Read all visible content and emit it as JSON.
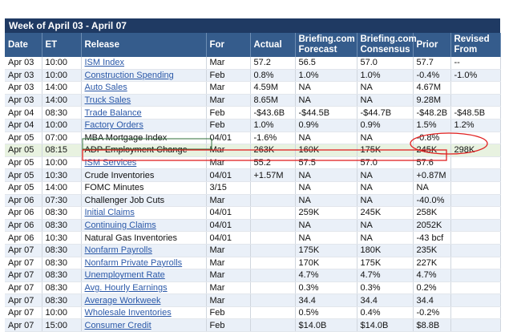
{
  "week_title": "Week of April 03 - April 07",
  "columns": [
    "Date",
    "ET",
    "Release",
    "For",
    "Actual",
    "Briefing.com Forecast",
    "Briefing.com Consensus",
    "Prior",
    "Revised From"
  ],
  "rows": [
    {
      "date": "Apr 03",
      "et": "10:00",
      "release": "ISM Index",
      "link": true,
      "for": "Mar",
      "actual": "57.2",
      "forecast": "56.5",
      "consensus": "57.0",
      "prior": "57.7",
      "revised": "--"
    },
    {
      "date": "Apr 03",
      "et": "10:00",
      "release": "Construction Spending",
      "link": true,
      "for": "Feb",
      "actual": "0.8%",
      "forecast": "1.0%",
      "consensus": "1.0%",
      "prior": "-0.4%",
      "revised": "-1.0%"
    },
    {
      "date": "Apr 03",
      "et": "14:00",
      "release": "Auto Sales",
      "link": true,
      "for": "Mar",
      "actual": "4.59M",
      "forecast": "NA",
      "consensus": "NA",
      "prior": "4.67M",
      "revised": ""
    },
    {
      "date": "Apr 03",
      "et": "14:00",
      "release": "Truck Sales",
      "link": true,
      "for": "Mar",
      "actual": "8.65M",
      "forecast": "NA",
      "consensus": "NA",
      "prior": "9.28M",
      "revised": ""
    },
    {
      "date": "Apr 04",
      "et": "08:30",
      "release": "Trade Balance",
      "link": true,
      "for": "Feb",
      "actual": "-$43.6B",
      "forecast": "-$44.5B",
      "consensus": "-$44.7B",
      "prior": "-$48.2B",
      "revised": "-$48.5B"
    },
    {
      "date": "Apr 04",
      "et": "10:00",
      "release": "Factory Orders",
      "link": true,
      "for": "Feb",
      "actual": "1.0%",
      "forecast": "0.9%",
      "consensus": "0.9%",
      "prior": "1.5%",
      "revised": "1.2%"
    },
    {
      "date": "Apr 05",
      "et": "07:00",
      "release": "MBA Mortgage Index",
      "link": false,
      "for": "04/01",
      "actual": "-1.6%",
      "forecast": "NA",
      "consensus": "NA",
      "prior": "-0.8%",
      "revised": ""
    },
    {
      "date": "Apr 05",
      "et": "08:15",
      "release": "ADP Employment Change",
      "link": false,
      "for": "Mar",
      "actual": "263K",
      "forecast": "160K",
      "consensus": "175K",
      "prior": "245K",
      "revised": "298K",
      "highlight": true
    },
    {
      "date": "Apr 05",
      "et": "10:00",
      "release": "ISM Services",
      "link": true,
      "for": "Mar",
      "actual": "55.2",
      "forecast": "57.5",
      "consensus": "57.0",
      "prior": "57.6",
      "revised": ""
    },
    {
      "date": "Apr 05",
      "et": "10:30",
      "release": "Crude Inventories",
      "link": false,
      "for": "04/01",
      "actual": "+1.57M",
      "forecast": "NA",
      "consensus": "NA",
      "prior": "+0.87M",
      "revised": ""
    },
    {
      "date": "Apr 05",
      "et": "14:00",
      "release": "FOMC Minutes",
      "link": false,
      "for": "3/15",
      "actual": "",
      "forecast": "NA",
      "consensus": "NA",
      "prior": "NA",
      "revised": ""
    },
    {
      "date": "Apr 06",
      "et": "07:30",
      "release": "Challenger Job Cuts",
      "link": false,
      "for": "Mar",
      "actual": "",
      "forecast": "NA",
      "consensus": "NA",
      "prior": "-40.0%",
      "revised": ""
    },
    {
      "date": "Apr 06",
      "et": "08:30",
      "release": "Initial Claims",
      "link": true,
      "for": "04/01",
      "actual": "",
      "forecast": "259K",
      "consensus": "245K",
      "prior": "258K",
      "revised": ""
    },
    {
      "date": "Apr 06",
      "et": "08:30",
      "release": "Continuing Claims",
      "link": true,
      "for": "04/01",
      "actual": "",
      "forecast": "NA",
      "consensus": "NA",
      "prior": "2052K",
      "revised": ""
    },
    {
      "date": "Apr 06",
      "et": "10:30",
      "release": "Natural Gas Inventories",
      "link": false,
      "for": "04/01",
      "actual": "",
      "forecast": "NA",
      "consensus": "NA",
      "prior": "-43 bcf",
      "revised": ""
    },
    {
      "date": "Apr 07",
      "et": "08:30",
      "release": "Nonfarm Payrolls",
      "link": true,
      "for": "Mar",
      "actual": "",
      "forecast": "175K",
      "consensus": "180K",
      "prior": "235K",
      "revised": ""
    },
    {
      "date": "Apr 07",
      "et": "08:30",
      "release": "Nonfarm Private Payrolls",
      "link": true,
      "for": "Mar",
      "actual": "",
      "forecast": "170K",
      "consensus": "175K",
      "prior": "227K",
      "revised": ""
    },
    {
      "date": "Apr 07",
      "et": "08:30",
      "release": "Unemployment Rate",
      "link": true,
      "for": "Mar",
      "actual": "",
      "forecast": "4.7%",
      "consensus": "4.7%",
      "prior": "4.7%",
      "revised": ""
    },
    {
      "date": "Apr 07",
      "et": "08:30",
      "release": "Avg. Hourly Earnings",
      "link": true,
      "for": "Mar",
      "actual": "",
      "forecast": "0.3%",
      "consensus": "0.3%",
      "prior": "0.2%",
      "revised": ""
    },
    {
      "date": "Apr 07",
      "et": "08:30",
      "release": "Average Workweek",
      "link": true,
      "for": "Mar",
      "actual": "",
      "forecast": "34.4",
      "consensus": "34.4",
      "prior": "34.4",
      "revised": ""
    },
    {
      "date": "Apr 07",
      "et": "10:00",
      "release": "Wholesale Inventories",
      "link": true,
      "for": "Feb",
      "actual": "",
      "forecast": "0.5%",
      "consensus": "0.4%",
      "prior": "-0.2%",
      "revised": ""
    },
    {
      "date": "Apr 07",
      "et": "15:00",
      "release": "Consumer Credit",
      "link": true,
      "for": "Feb",
      "actual": "",
      "forecast": "$14.0B",
      "consensus": "$14.0B",
      "prior": "$8.8B",
      "revised": ""
    }
  ],
  "colors": {
    "header_dark": "#1f3a63",
    "header": "#355c8c",
    "row_alt": "#eaf0f8",
    "highlight": "#e8f2e0",
    "annotation": "#e02020",
    "link": "#2a58a8"
  }
}
